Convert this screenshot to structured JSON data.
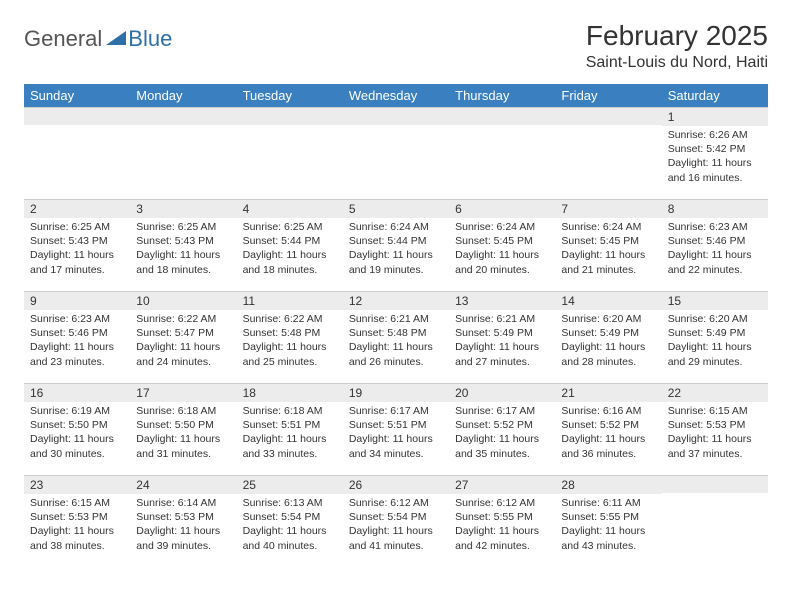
{
  "logo": {
    "text1": "General",
    "text2": "Blue"
  },
  "title": "February 2025",
  "location": "Saint-Louis du Nord, Haiti",
  "colors": {
    "header_bg": "#3a7fbf",
    "header_text": "#ffffff",
    "daynum_bg": "#ececec",
    "border": "#cccccc",
    "logo_blue": "#2f6fa7",
    "page_bg": "#ffffff"
  },
  "day_headers": [
    "Sunday",
    "Monday",
    "Tuesday",
    "Wednesday",
    "Thursday",
    "Friday",
    "Saturday"
  ],
  "weeks": [
    [
      {
        "n": "",
        "sr": "",
        "ss": "",
        "dl": ""
      },
      {
        "n": "",
        "sr": "",
        "ss": "",
        "dl": ""
      },
      {
        "n": "",
        "sr": "",
        "ss": "",
        "dl": ""
      },
      {
        "n": "",
        "sr": "",
        "ss": "",
        "dl": ""
      },
      {
        "n": "",
        "sr": "",
        "ss": "",
        "dl": ""
      },
      {
        "n": "",
        "sr": "",
        "ss": "",
        "dl": ""
      },
      {
        "n": "1",
        "sr": "Sunrise: 6:26 AM",
        "ss": "Sunset: 5:42 PM",
        "dl": "Daylight: 11 hours and 16 minutes."
      }
    ],
    [
      {
        "n": "2",
        "sr": "Sunrise: 6:25 AM",
        "ss": "Sunset: 5:43 PM",
        "dl": "Daylight: 11 hours and 17 minutes."
      },
      {
        "n": "3",
        "sr": "Sunrise: 6:25 AM",
        "ss": "Sunset: 5:43 PM",
        "dl": "Daylight: 11 hours and 18 minutes."
      },
      {
        "n": "4",
        "sr": "Sunrise: 6:25 AM",
        "ss": "Sunset: 5:44 PM",
        "dl": "Daylight: 11 hours and 18 minutes."
      },
      {
        "n": "5",
        "sr": "Sunrise: 6:24 AM",
        "ss": "Sunset: 5:44 PM",
        "dl": "Daylight: 11 hours and 19 minutes."
      },
      {
        "n": "6",
        "sr": "Sunrise: 6:24 AM",
        "ss": "Sunset: 5:45 PM",
        "dl": "Daylight: 11 hours and 20 minutes."
      },
      {
        "n": "7",
        "sr": "Sunrise: 6:24 AM",
        "ss": "Sunset: 5:45 PM",
        "dl": "Daylight: 11 hours and 21 minutes."
      },
      {
        "n": "8",
        "sr": "Sunrise: 6:23 AM",
        "ss": "Sunset: 5:46 PM",
        "dl": "Daylight: 11 hours and 22 minutes."
      }
    ],
    [
      {
        "n": "9",
        "sr": "Sunrise: 6:23 AM",
        "ss": "Sunset: 5:46 PM",
        "dl": "Daylight: 11 hours and 23 minutes."
      },
      {
        "n": "10",
        "sr": "Sunrise: 6:22 AM",
        "ss": "Sunset: 5:47 PM",
        "dl": "Daylight: 11 hours and 24 minutes."
      },
      {
        "n": "11",
        "sr": "Sunrise: 6:22 AM",
        "ss": "Sunset: 5:48 PM",
        "dl": "Daylight: 11 hours and 25 minutes."
      },
      {
        "n": "12",
        "sr": "Sunrise: 6:21 AM",
        "ss": "Sunset: 5:48 PM",
        "dl": "Daylight: 11 hours and 26 minutes."
      },
      {
        "n": "13",
        "sr": "Sunrise: 6:21 AM",
        "ss": "Sunset: 5:49 PM",
        "dl": "Daylight: 11 hours and 27 minutes."
      },
      {
        "n": "14",
        "sr": "Sunrise: 6:20 AM",
        "ss": "Sunset: 5:49 PM",
        "dl": "Daylight: 11 hours and 28 minutes."
      },
      {
        "n": "15",
        "sr": "Sunrise: 6:20 AM",
        "ss": "Sunset: 5:49 PM",
        "dl": "Daylight: 11 hours and 29 minutes."
      }
    ],
    [
      {
        "n": "16",
        "sr": "Sunrise: 6:19 AM",
        "ss": "Sunset: 5:50 PM",
        "dl": "Daylight: 11 hours and 30 minutes."
      },
      {
        "n": "17",
        "sr": "Sunrise: 6:18 AM",
        "ss": "Sunset: 5:50 PM",
        "dl": "Daylight: 11 hours and 31 minutes."
      },
      {
        "n": "18",
        "sr": "Sunrise: 6:18 AM",
        "ss": "Sunset: 5:51 PM",
        "dl": "Daylight: 11 hours and 33 minutes."
      },
      {
        "n": "19",
        "sr": "Sunrise: 6:17 AM",
        "ss": "Sunset: 5:51 PM",
        "dl": "Daylight: 11 hours and 34 minutes."
      },
      {
        "n": "20",
        "sr": "Sunrise: 6:17 AM",
        "ss": "Sunset: 5:52 PM",
        "dl": "Daylight: 11 hours and 35 minutes."
      },
      {
        "n": "21",
        "sr": "Sunrise: 6:16 AM",
        "ss": "Sunset: 5:52 PM",
        "dl": "Daylight: 11 hours and 36 minutes."
      },
      {
        "n": "22",
        "sr": "Sunrise: 6:15 AM",
        "ss": "Sunset: 5:53 PM",
        "dl": "Daylight: 11 hours and 37 minutes."
      }
    ],
    [
      {
        "n": "23",
        "sr": "Sunrise: 6:15 AM",
        "ss": "Sunset: 5:53 PM",
        "dl": "Daylight: 11 hours and 38 minutes."
      },
      {
        "n": "24",
        "sr": "Sunrise: 6:14 AM",
        "ss": "Sunset: 5:53 PM",
        "dl": "Daylight: 11 hours and 39 minutes."
      },
      {
        "n": "25",
        "sr": "Sunrise: 6:13 AM",
        "ss": "Sunset: 5:54 PM",
        "dl": "Daylight: 11 hours and 40 minutes."
      },
      {
        "n": "26",
        "sr": "Sunrise: 6:12 AM",
        "ss": "Sunset: 5:54 PM",
        "dl": "Daylight: 11 hours and 41 minutes."
      },
      {
        "n": "27",
        "sr": "Sunrise: 6:12 AM",
        "ss": "Sunset: 5:55 PM",
        "dl": "Daylight: 11 hours and 42 minutes."
      },
      {
        "n": "28",
        "sr": "Sunrise: 6:11 AM",
        "ss": "Sunset: 5:55 PM",
        "dl": "Daylight: 11 hours and 43 minutes."
      },
      {
        "n": "",
        "sr": "",
        "ss": "",
        "dl": ""
      }
    ]
  ]
}
